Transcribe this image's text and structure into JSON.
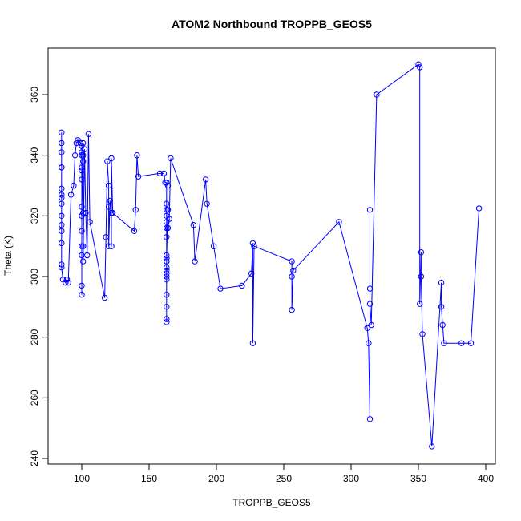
{
  "chart_data": {
    "type": "scatter",
    "title": "ATOM2 Northbound TROPPB_GEOS5",
    "xlabel": "TROPPB_GEOS5",
    "ylabel": "Theta (K)",
    "xlim": [
      50,
      400
    ],
    "ylim": [
      240,
      370
    ],
    "x_ticks": [
      100,
      150,
      200,
      250,
      300,
      350,
      400
    ],
    "y_ticks": [
      240,
      260,
      280,
      300,
      320,
      340,
      360
    ],
    "grid": false,
    "legend": "none",
    "series_color": "#0000ff",
    "marker": "open-circle",
    "connected": true,
    "x": [
      85,
      85,
      85,
      85,
      85,
      85,
      85,
      85,
      85,
      85,
      85,
      85,
      85,
      85,
      85,
      86,
      88,
      89,
      90,
      92,
      94,
      95,
      96,
      97,
      99,
      100,
      100,
      100,
      100,
      100,
      100,
      100,
      100,
      100,
      100,
      100,
      100,
      100,
      100,
      100,
      101,
      101,
      101,
      101,
      101,
      101,
      102,
      103,
      104,
      105,
      106,
      117,
      118,
      119,
      120,
      120,
      120,
      121,
      122,
      122,
      122,
      123,
      139,
      140,
      141,
      142,
      158,
      161,
      162,
      163,
      163,
      163,
      163,
      163,
      163,
      163,
      163,
      163,
      163,
      163,
      163,
      163,
      163,
      163,
      163,
      163,
      163,
      163,
      163,
      163,
      164,
      164,
      164,
      165,
      166,
      183,
      184,
      192,
      193,
      198,
      203,
      219,
      226,
      227,
      227,
      228,
      256,
      256,
      256,
      257,
      291,
      312,
      313,
      314,
      314,
      314,
      314,
      315,
      319,
      350,
      351,
      351,
      352,
      352,
      353,
      360,
      367,
      367,
      368,
      369,
      382,
      389,
      395
    ],
    "y": [
      347.5,
      344,
      341,
      336,
      336,
      329,
      327,
      326,
      324,
      320,
      317,
      315,
      311,
      304,
      303,
      299,
      298,
      299,
      298,
      327,
      330,
      340,
      344,
      345,
      344,
      343,
      341,
      340,
      336,
      335,
      323,
      320,
      315,
      310,
      307,
      297,
      294,
      332,
      335,
      320,
      344,
      340,
      338,
      321,
      310,
      305,
      342,
      321,
      307,
      347,
      318,
      293,
      313,
      338,
      330,
      323,
      310,
      325,
      321,
      310,
      339,
      321,
      315,
      322,
      340,
      333,
      334,
      334,
      331,
      331,
      324,
      322,
      320,
      318,
      316,
      313,
      307,
      306,
      305,
      303,
      302,
      301,
      286,
      285,
      290,
      294,
      299,
      300,
      305,
      306,
      322,
      330,
      316,
      319,
      339,
      317,
      305,
      332,
      324,
      310,
      296,
      297,
      301,
      311,
      278,
      310,
      305,
      300,
      289,
      302,
      318,
      283,
      278,
      253,
      322,
      296,
      291,
      284,
      360,
      370,
      369,
      291,
      308,
      300,
      281,
      244,
      298,
      290,
      284,
      278,
      278,
      278,
      322.5
    ]
  }
}
